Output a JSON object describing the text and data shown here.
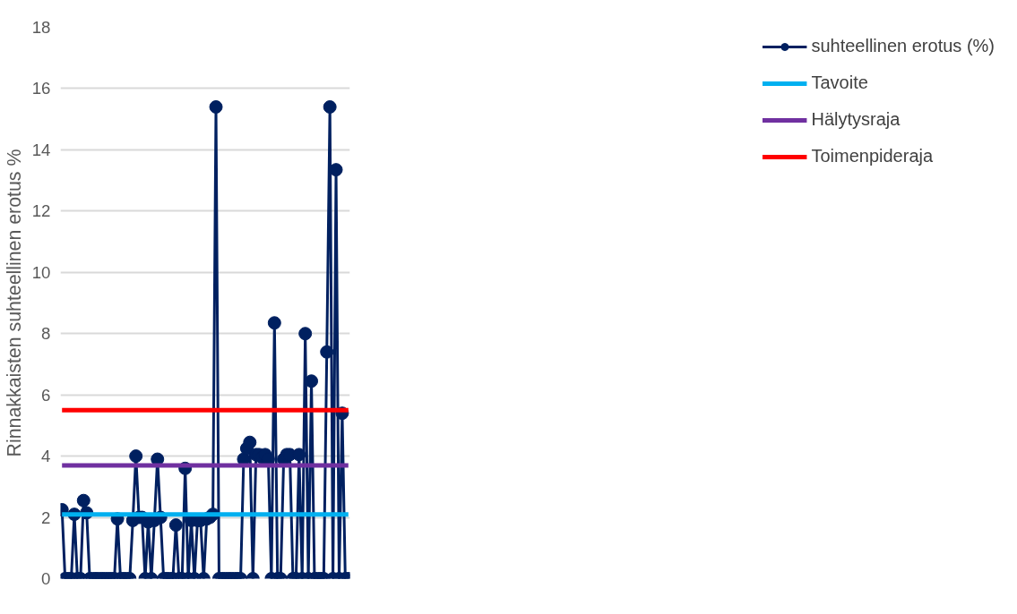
{
  "chart_data": {
    "type": "line",
    "ylabel": "Rinnakkaisten suhteellinen erotus %",
    "categories": [
      null,
      null,
      null,
      null,
      null,
      null,
      null,
      null,
      null,
      null,
      null,
      null,
      null,
      null,
      null,
      null,
      null,
      null,
      null,
      null,
      null,
      null,
      null,
      null,
      null,
      null,
      null,
      null,
      null,
      null,
      null,
      null,
      null,
      null,
      null,
      null,
      null,
      null,
      null,
      null,
      null,
      null,
      null,
      null,
      null,
      null,
      null,
      null,
      null,
      null,
      null,
      null,
      null,
      null,
      null,
      null,
      null,
      null,
      null,
      null,
      null,
      null,
      null,
      null,
      null,
      null,
      null,
      null,
      null,
      null,
      null,
      null,
      null,
      null,
      null,
      null,
      null,
      null,
      null,
      null,
      null,
      null,
      null,
      null,
      null,
      null,
      null,
      null,
      null,
      null,
      null,
      null,
      null,
      null
    ],
    "series": [
      {
        "name": "suhteellinen erotus (%)",
        "color": "#002060",
        "values": [
          2.25,
          0,
          0,
          0,
          2.1,
          0,
          0,
          2.55,
          2.15,
          0,
          0,
          0,
          0,
          0,
          0,
          0,
          0,
          0,
          1.95,
          0,
          0,
          0,
          0,
          1.9,
          4.0,
          2.0,
          2.0,
          0,
          1.85,
          0,
          1.9,
          3.9,
          2.0,
          0,
          0,
          0,
          0,
          1.75,
          0,
          0,
          3.6,
          0,
          1.9,
          0,
          1.9,
          1.9,
          0,
          1.95,
          2.0,
          2.1,
          15.4,
          0,
          0,
          0,
          0,
          0,
          0,
          0,
          0,
          3.9,
          4.25,
          4.45,
          0,
          4.05,
          4.05,
          3.95,
          4.05,
          3.9,
          0,
          8.35,
          0,
          0,
          3.9,
          4.05,
          4.05,
          0,
          0,
          4.05,
          0,
          8.0,
          0,
          6.45,
          0,
          0,
          0,
          0,
          7.4,
          15.4,
          0,
          13.35,
          0,
          5.4,
          0,
          0
        ]
      }
    ],
    "ref_lines": [
      {
        "axis": "y",
        "value": 2.1,
        "label": "Tavoite",
        "color": "#00b0f0"
      },
      {
        "axis": "y",
        "value": 3.7,
        "label": "Hälytysraja",
        "color": "#7030a0"
      },
      {
        "axis": "y",
        "value": 5.5,
        "label": "Toimenpideraja",
        "color": "#ff0000"
      }
    ],
    "ylim": [
      0,
      18
    ],
    "yticks": [
      0,
      2,
      4,
      6,
      8,
      10,
      12,
      14,
      16,
      18
    ],
    "grid": "y",
    "legend": "right",
    "marker": "circle",
    "line_style": "solid",
    "tick_labels": "y"
  }
}
